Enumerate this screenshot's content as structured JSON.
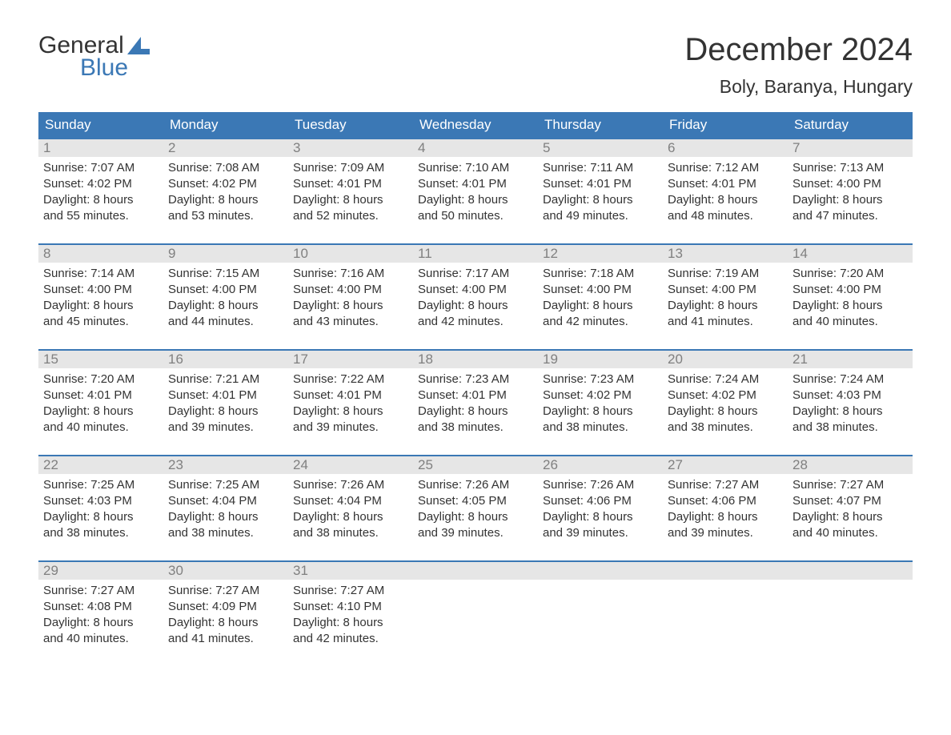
{
  "logo": {
    "word1": "General",
    "word2": "Blue"
  },
  "title": "December 2024",
  "location": "Boly, Baranya, Hungary",
  "colors": {
    "header_bg": "#3b78b5",
    "header_text": "#ffffff",
    "daynum_bg": "#e6e6e6",
    "daynum_text": "#808080",
    "body_text": "#333333",
    "accent": "#3b78b5",
    "page_bg": "#ffffff"
  },
  "typography": {
    "title_fontsize": 40,
    "location_fontsize": 23,
    "dow_fontsize": 17,
    "daynum_fontsize": 17,
    "body_fontsize": 15
  },
  "dow": [
    "Sunday",
    "Monday",
    "Tuesday",
    "Wednesday",
    "Thursday",
    "Friday",
    "Saturday"
  ],
  "weeks": [
    [
      {
        "n": "1",
        "sunrise": "Sunrise: 7:07 AM",
        "sunset": "Sunset: 4:02 PM",
        "dl1": "Daylight: 8 hours",
        "dl2": "and 55 minutes."
      },
      {
        "n": "2",
        "sunrise": "Sunrise: 7:08 AM",
        "sunset": "Sunset: 4:02 PM",
        "dl1": "Daylight: 8 hours",
        "dl2": "and 53 minutes."
      },
      {
        "n": "3",
        "sunrise": "Sunrise: 7:09 AM",
        "sunset": "Sunset: 4:01 PM",
        "dl1": "Daylight: 8 hours",
        "dl2": "and 52 minutes."
      },
      {
        "n": "4",
        "sunrise": "Sunrise: 7:10 AM",
        "sunset": "Sunset: 4:01 PM",
        "dl1": "Daylight: 8 hours",
        "dl2": "and 50 minutes."
      },
      {
        "n": "5",
        "sunrise": "Sunrise: 7:11 AM",
        "sunset": "Sunset: 4:01 PM",
        "dl1": "Daylight: 8 hours",
        "dl2": "and 49 minutes."
      },
      {
        "n": "6",
        "sunrise": "Sunrise: 7:12 AM",
        "sunset": "Sunset: 4:01 PM",
        "dl1": "Daylight: 8 hours",
        "dl2": "and 48 minutes."
      },
      {
        "n": "7",
        "sunrise": "Sunrise: 7:13 AM",
        "sunset": "Sunset: 4:00 PM",
        "dl1": "Daylight: 8 hours",
        "dl2": "and 47 minutes."
      }
    ],
    [
      {
        "n": "8",
        "sunrise": "Sunrise: 7:14 AM",
        "sunset": "Sunset: 4:00 PM",
        "dl1": "Daylight: 8 hours",
        "dl2": "and 45 minutes."
      },
      {
        "n": "9",
        "sunrise": "Sunrise: 7:15 AM",
        "sunset": "Sunset: 4:00 PM",
        "dl1": "Daylight: 8 hours",
        "dl2": "and 44 minutes."
      },
      {
        "n": "10",
        "sunrise": "Sunrise: 7:16 AM",
        "sunset": "Sunset: 4:00 PM",
        "dl1": "Daylight: 8 hours",
        "dl2": "and 43 minutes."
      },
      {
        "n": "11",
        "sunrise": "Sunrise: 7:17 AM",
        "sunset": "Sunset: 4:00 PM",
        "dl1": "Daylight: 8 hours",
        "dl2": "and 42 minutes."
      },
      {
        "n": "12",
        "sunrise": "Sunrise: 7:18 AM",
        "sunset": "Sunset: 4:00 PM",
        "dl1": "Daylight: 8 hours",
        "dl2": "and 42 minutes."
      },
      {
        "n": "13",
        "sunrise": "Sunrise: 7:19 AM",
        "sunset": "Sunset: 4:00 PM",
        "dl1": "Daylight: 8 hours",
        "dl2": "and 41 minutes."
      },
      {
        "n": "14",
        "sunrise": "Sunrise: 7:20 AM",
        "sunset": "Sunset: 4:00 PM",
        "dl1": "Daylight: 8 hours",
        "dl2": "and 40 minutes."
      }
    ],
    [
      {
        "n": "15",
        "sunrise": "Sunrise: 7:20 AM",
        "sunset": "Sunset: 4:01 PM",
        "dl1": "Daylight: 8 hours",
        "dl2": "and 40 minutes."
      },
      {
        "n": "16",
        "sunrise": "Sunrise: 7:21 AM",
        "sunset": "Sunset: 4:01 PM",
        "dl1": "Daylight: 8 hours",
        "dl2": "and 39 minutes."
      },
      {
        "n": "17",
        "sunrise": "Sunrise: 7:22 AM",
        "sunset": "Sunset: 4:01 PM",
        "dl1": "Daylight: 8 hours",
        "dl2": "and 39 minutes."
      },
      {
        "n": "18",
        "sunrise": "Sunrise: 7:23 AM",
        "sunset": "Sunset: 4:01 PM",
        "dl1": "Daylight: 8 hours",
        "dl2": "and 38 minutes."
      },
      {
        "n": "19",
        "sunrise": "Sunrise: 7:23 AM",
        "sunset": "Sunset: 4:02 PM",
        "dl1": "Daylight: 8 hours",
        "dl2": "and 38 minutes."
      },
      {
        "n": "20",
        "sunrise": "Sunrise: 7:24 AM",
        "sunset": "Sunset: 4:02 PM",
        "dl1": "Daylight: 8 hours",
        "dl2": "and 38 minutes."
      },
      {
        "n": "21",
        "sunrise": "Sunrise: 7:24 AM",
        "sunset": "Sunset: 4:03 PM",
        "dl1": "Daylight: 8 hours",
        "dl2": "and 38 minutes."
      }
    ],
    [
      {
        "n": "22",
        "sunrise": "Sunrise: 7:25 AM",
        "sunset": "Sunset: 4:03 PM",
        "dl1": "Daylight: 8 hours",
        "dl2": "and 38 minutes."
      },
      {
        "n": "23",
        "sunrise": "Sunrise: 7:25 AM",
        "sunset": "Sunset: 4:04 PM",
        "dl1": "Daylight: 8 hours",
        "dl2": "and 38 minutes."
      },
      {
        "n": "24",
        "sunrise": "Sunrise: 7:26 AM",
        "sunset": "Sunset: 4:04 PM",
        "dl1": "Daylight: 8 hours",
        "dl2": "and 38 minutes."
      },
      {
        "n": "25",
        "sunrise": "Sunrise: 7:26 AM",
        "sunset": "Sunset: 4:05 PM",
        "dl1": "Daylight: 8 hours",
        "dl2": "and 39 minutes."
      },
      {
        "n": "26",
        "sunrise": "Sunrise: 7:26 AM",
        "sunset": "Sunset: 4:06 PM",
        "dl1": "Daylight: 8 hours",
        "dl2": "and 39 minutes."
      },
      {
        "n": "27",
        "sunrise": "Sunrise: 7:27 AM",
        "sunset": "Sunset: 4:06 PM",
        "dl1": "Daylight: 8 hours",
        "dl2": "and 39 minutes."
      },
      {
        "n": "28",
        "sunrise": "Sunrise: 7:27 AM",
        "sunset": "Sunset: 4:07 PM",
        "dl1": "Daylight: 8 hours",
        "dl2": "and 40 minutes."
      }
    ],
    [
      {
        "n": "29",
        "sunrise": "Sunrise: 7:27 AM",
        "sunset": "Sunset: 4:08 PM",
        "dl1": "Daylight: 8 hours",
        "dl2": "and 40 minutes."
      },
      {
        "n": "30",
        "sunrise": "Sunrise: 7:27 AM",
        "sunset": "Sunset: 4:09 PM",
        "dl1": "Daylight: 8 hours",
        "dl2": "and 41 minutes."
      },
      {
        "n": "31",
        "sunrise": "Sunrise: 7:27 AM",
        "sunset": "Sunset: 4:10 PM",
        "dl1": "Daylight: 8 hours",
        "dl2": "and 42 minutes."
      },
      null,
      null,
      null,
      null
    ]
  ]
}
